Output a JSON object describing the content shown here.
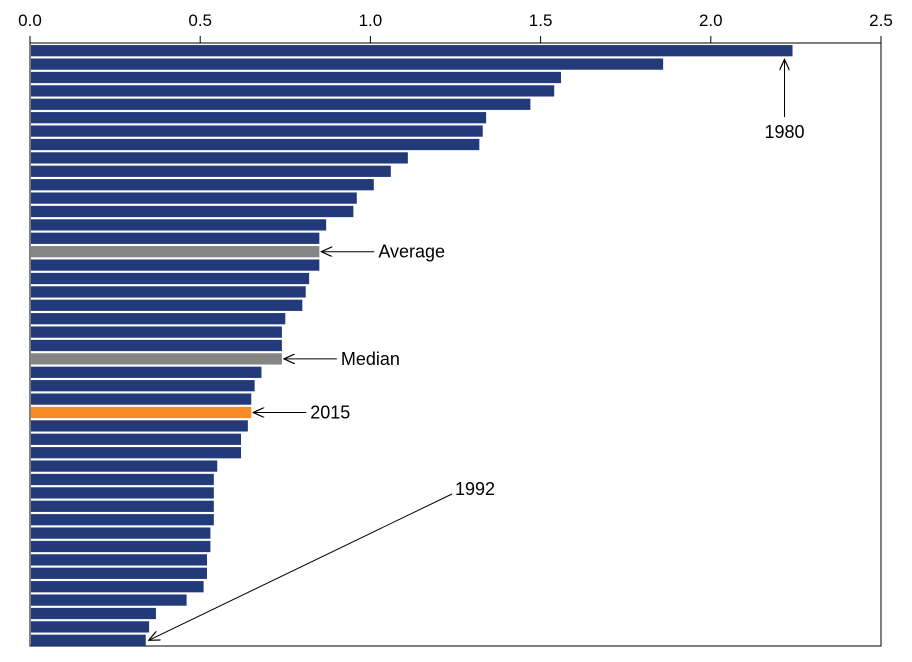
{
  "chart_data": {
    "type": "bar",
    "orientation": "horizontal",
    "x_axis_position": "top",
    "xlim": [
      0,
      2.5
    ],
    "x_ticks": [
      "0.0",
      "0.5",
      "1.0",
      "1.5",
      "2.0",
      "2.5"
    ],
    "grid": false,
    "legend": "none",
    "colors": {
      "default": "#233a7a",
      "reference": "#858585",
      "highlight": "#f68b24"
    },
    "values": [
      2.24,
      1.86,
      1.56,
      1.54,
      1.47,
      1.34,
      1.33,
      1.32,
      1.11,
      1.06,
      1.01,
      0.96,
      0.95,
      0.87,
      0.85,
      0.85,
      0.85,
      0.82,
      0.81,
      0.8,
      0.75,
      0.74,
      0.74,
      0.74,
      0.68,
      0.66,
      0.65,
      0.65,
      0.64,
      0.62,
      0.62,
      0.55,
      0.54,
      0.54,
      0.54,
      0.54,
      0.53,
      0.53,
      0.52,
      0.52,
      0.51,
      0.46,
      0.37,
      0.35,
      0.34
    ],
    "bar_roles": [
      "default",
      "default",
      "default",
      "default",
      "default",
      "default",
      "default",
      "default",
      "default",
      "default",
      "default",
      "default",
      "default",
      "default",
      "default",
      "reference",
      "default",
      "default",
      "default",
      "default",
      "default",
      "default",
      "default",
      "reference",
      "default",
      "default",
      "default",
      "highlight",
      "default",
      "default",
      "default",
      "default",
      "default",
      "default",
      "default",
      "default",
      "default",
      "default",
      "default",
      "default",
      "default",
      "default",
      "default",
      "default",
      "default"
    ],
    "annotations": [
      {
        "label": "1980",
        "bar_index": 0
      },
      {
        "label": "Average",
        "bar_index": 15
      },
      {
        "label": "Median",
        "bar_index": 23
      },
      {
        "label": "2015",
        "bar_index": 27
      },
      {
        "label": "1992",
        "bar_index": 44
      }
    ]
  }
}
